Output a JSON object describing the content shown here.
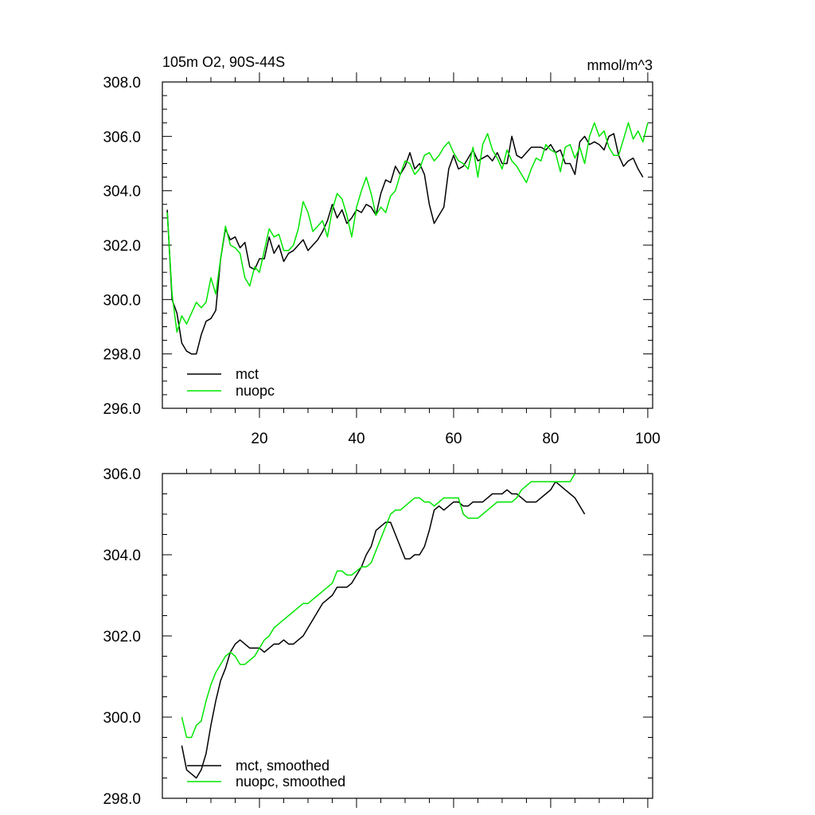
{
  "colors": {
    "mct": "#000000",
    "nuopc": "#00e600"
  },
  "chart_data": [
    {
      "type": "line",
      "title_left": "105m O2, 90S-44S",
      "title_right": "mmol/m^3",
      "xlim": [
        0,
        101
      ],
      "ylim": [
        296,
        308
      ],
      "yticks": [
        296,
        298,
        300,
        302,
        304,
        306,
        308
      ],
      "ytick_labels": [
        "296.0",
        "298.0",
        "300.0",
        "302.0",
        "304.0",
        "306.0",
        "308.0"
      ],
      "xticks": [
        20,
        40,
        60,
        80,
        100
      ],
      "xtick_labels": [
        "20",
        "40",
        "60",
        "80",
        "100"
      ],
      "legend_position": "lower-left",
      "series": [
        {
          "name": "mct",
          "x_start": 1,
          "values": [
            303.3,
            300.0,
            299.5,
            298.4,
            298.1,
            298.0,
            298.0,
            298.7,
            299.2,
            299.3,
            299.6,
            301.5,
            302.6,
            302.2,
            302.3,
            301.9,
            302.1,
            301.2,
            301.1,
            301.5,
            301.5,
            302.3,
            301.7,
            302.0,
            301.4,
            301.7,
            301.8,
            302.0,
            302.2,
            301.8,
            302.0,
            302.2,
            302.5,
            302.9,
            303.5,
            303.0,
            303.3,
            302.8,
            303.0,
            303.3,
            303.2,
            303.5,
            303.4,
            303.1,
            303.9,
            304.4,
            304.3,
            304.9,
            304.6,
            304.9,
            305.4,
            304.8,
            305.0,
            304.6,
            303.5,
            302.8,
            303.1,
            303.4,
            304.8,
            305.3,
            304.8,
            304.9,
            305.2,
            305.5,
            305.1,
            305.2,
            305.3,
            305.1,
            305.4,
            305.0,
            305.0,
            306.0,
            305.3,
            305.2,
            305.4,
            305.6,
            305.6,
            305.6,
            305.5,
            305.7,
            305.4,
            305.5,
            305.0,
            305.0,
            304.6,
            305.8,
            306.0,
            305.7,
            305.8,
            305.7,
            305.5,
            306.0,
            306.1,
            305.3,
            304.9,
            305.1,
            305.2,
            304.8,
            304.5
          ],
          "color_key": "mct"
        },
        {
          "name": "nuopc",
          "x_start": 1,
          "values": [
            303.2,
            300.2,
            298.8,
            299.4,
            299.1,
            299.5,
            299.9,
            299.7,
            299.9,
            300.8,
            300.2,
            301.5,
            302.7,
            302.0,
            301.9,
            301.7,
            300.8,
            300.5,
            301.2,
            301.0,
            301.8,
            302.6,
            302.3,
            302.4,
            301.8,
            301.8,
            302.0,
            302.6,
            303.6,
            303.2,
            302.5,
            302.7,
            302.9,
            302.3,
            303.3,
            303.9,
            303.7,
            303.1,
            302.3,
            303.4,
            304.0,
            304.5,
            303.9,
            303.1,
            303.4,
            303.2,
            303.8,
            304.0,
            304.6,
            305.1,
            305.0,
            304.6,
            304.8,
            305.3,
            305.4,
            305.1,
            305.3,
            305.6,
            305.8,
            305.4,
            305.1,
            305.0,
            304.8,
            305.6,
            304.5,
            305.7,
            306.1,
            305.5,
            305.2,
            304.8,
            305.5,
            305.1,
            304.9,
            304.6,
            304.3,
            304.8,
            305.2,
            305.1,
            305.7,
            305.5,
            305.4,
            304.7,
            305.6,
            305.7,
            305.2,
            305.6,
            305.0,
            306.0,
            306.5,
            306.0,
            306.2,
            305.6,
            305.3,
            305.3,
            305.9,
            306.5,
            305.9,
            306.2,
            305.8,
            306.5
          ],
          "color_key": "nuopc"
        }
      ]
    },
    {
      "type": "line",
      "xlim": [
        0,
        101
      ],
      "ylim": [
        298,
        306
      ],
      "yticks": [
        298,
        300,
        302,
        304,
        306
      ],
      "ytick_labels": [
        "298.0",
        "300.0",
        "302.0",
        "304.0",
        "306.0"
      ],
      "xticks": [
        20,
        40,
        60,
        80,
        100
      ],
      "xtick_labels": [],
      "legend_position": "lower-left",
      "series": [
        {
          "name": "mct, smoothed",
          "x_start": 4,
          "values": [
            299.3,
            298.7,
            298.6,
            298.5,
            298.7,
            299.1,
            299.8,
            300.4,
            300.9,
            301.2,
            301.6,
            301.8,
            301.9,
            301.8,
            301.7,
            301.7,
            301.7,
            301.6,
            301.7,
            301.8,
            301.8,
            301.9,
            301.8,
            301.8,
            301.9,
            302.0,
            302.2,
            302.4,
            302.6,
            302.8,
            302.9,
            303.0,
            303.2,
            303.2,
            303.2,
            303.3,
            303.5,
            303.7,
            304.0,
            304.2,
            304.6,
            304.7,
            304.8,
            304.8,
            304.5,
            304.2,
            303.9,
            303.9,
            304.0,
            304.0,
            304.2,
            304.6,
            305.1,
            305.2,
            305.1,
            305.2,
            305.3,
            305.3,
            305.2,
            305.2,
            305.3,
            305.3,
            305.3,
            305.4,
            305.5,
            305.5,
            305.5,
            305.6,
            305.5,
            305.5,
            305.4,
            305.3,
            305.3,
            305.3,
            305.4,
            305.5,
            305.6,
            305.8,
            305.7,
            305.6,
            305.5,
            305.4,
            305.2,
            305.0
          ],
          "color_key": "mct"
        },
        {
          "name": "nuopc, smoothed",
          "x_start": 4,
          "values": [
            300.0,
            299.5,
            299.5,
            299.8,
            299.9,
            300.4,
            300.8,
            301.1,
            301.3,
            301.5,
            301.6,
            301.5,
            301.3,
            301.3,
            301.4,
            301.5,
            301.7,
            301.9,
            302.0,
            302.2,
            302.3,
            302.4,
            302.5,
            302.6,
            302.7,
            302.8,
            302.8,
            302.9,
            303.0,
            303.1,
            303.2,
            303.3,
            303.6,
            303.6,
            303.5,
            303.5,
            303.6,
            303.7,
            303.7,
            303.8,
            304.1,
            304.4,
            304.7,
            305.0,
            305.1,
            305.1,
            305.2,
            305.3,
            305.4,
            305.4,
            305.3,
            305.3,
            305.2,
            305.3,
            305.4,
            305.4,
            305.4,
            305.4,
            305.0,
            304.9,
            304.9,
            304.9,
            305.0,
            305.1,
            305.2,
            305.3,
            305.3,
            305.3,
            305.3,
            305.4,
            305.6,
            305.7,
            305.8,
            305.8,
            305.8,
            305.8,
            305.8,
            305.8,
            305.8,
            305.8,
            305.8,
            306.0
          ],
          "color_key": "nuopc"
        }
      ]
    }
  ]
}
